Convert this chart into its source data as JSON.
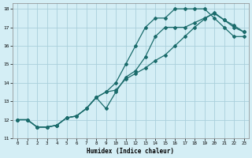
{
  "xlabel": "Humidex (Indice chaleur)",
  "background_color": "#d4eef5",
  "grid_color": "#aacfdb",
  "line_color": "#1a6b6b",
  "xlim": [
    -0.5,
    23.5
  ],
  "ylim": [
    11.0,
    18.3
  ],
  "xticks": [
    0,
    1,
    2,
    3,
    4,
    5,
    6,
    7,
    8,
    9,
    10,
    11,
    12,
    13,
    14,
    15,
    16,
    17,
    18,
    19,
    20,
    21,
    22,
    23
  ],
  "yticks": [
    11,
    12,
    13,
    14,
    15,
    16,
    17,
    18
  ],
  "line1_x": [
    0,
    1,
    2,
    3,
    4,
    5,
    6,
    7,
    8,
    9,
    10,
    11,
    12,
    13,
    14,
    15,
    16,
    17,
    18,
    19,
    20,
    21,
    22,
    23
  ],
  "line1_y": [
    12.0,
    12.0,
    11.6,
    11.6,
    11.7,
    12.1,
    12.2,
    12.6,
    13.2,
    12.6,
    13.5,
    14.3,
    14.65,
    15.4,
    16.5,
    17.0,
    17.0,
    17.0,
    17.25,
    17.5,
    17.75,
    17.4,
    17.1,
    16.75
  ],
  "line2_x": [
    0,
    1,
    2,
    3,
    4,
    5,
    6,
    7,
    8,
    9,
    10,
    11,
    12,
    13,
    14,
    15,
    16,
    17,
    18,
    19,
    20,
    21,
    22,
    23
  ],
  "line2_y": [
    12.0,
    12.0,
    11.6,
    11.6,
    11.7,
    12.1,
    12.2,
    12.6,
    13.2,
    13.5,
    13.6,
    14.2,
    14.5,
    14.8,
    15.2,
    15.5,
    16.0,
    16.5,
    17.0,
    17.45,
    17.8,
    17.4,
    17.0,
    16.75
  ],
  "line3_x": [
    0,
    1,
    2,
    3,
    4,
    5,
    6,
    7,
    8,
    9,
    10,
    11,
    12,
    13,
    14,
    15,
    16,
    17,
    18,
    19,
    20,
    21,
    22,
    23
  ],
  "line3_y": [
    12.0,
    12.0,
    11.6,
    11.6,
    11.7,
    12.1,
    12.2,
    12.6,
    13.2,
    13.5,
    14.0,
    15.0,
    16.0,
    17.0,
    17.5,
    17.5,
    18.0,
    18.0,
    18.0,
    18.0,
    17.5,
    17.0,
    16.5,
    16.5
  ]
}
